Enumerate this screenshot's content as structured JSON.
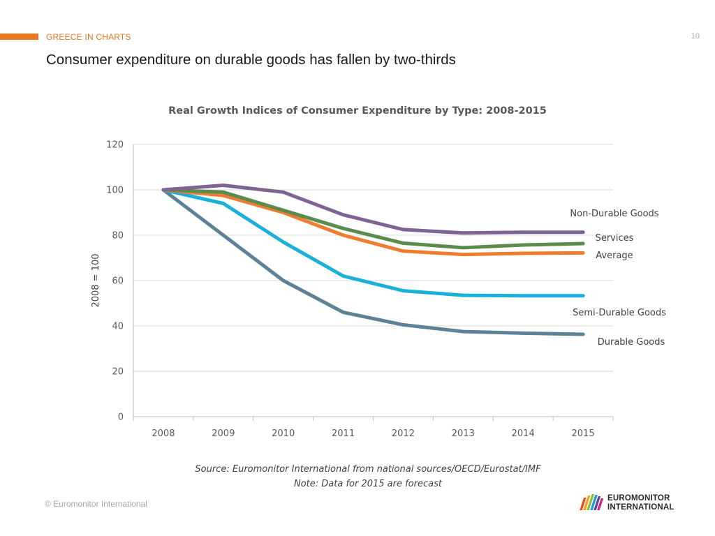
{
  "header": {
    "section_label": "GREECE IN CHARTS",
    "page_number": "10",
    "title": "Consumer expenditure on durable goods has fallen by two-thirds",
    "accent_color": "#e87722"
  },
  "chart_data": {
    "type": "line",
    "title": "Real Growth Indices of Consumer Expenditure by Type: 2008-2015",
    "xlabel": "",
    "ylabel": "2008 = 100",
    "ylim": [
      0,
      120
    ],
    "yticks": [
      0,
      20,
      40,
      60,
      80,
      100,
      120
    ],
    "grid": true,
    "categories": [
      "2008",
      "2009",
      "2010",
      "2011",
      "2012",
      "2013",
      "2014",
      "2015"
    ],
    "series": [
      {
        "name": "Durable Goods",
        "color": "#5b8296",
        "values": [
          100,
          80,
          60,
          46,
          40.5,
          37.5,
          36.8,
          36.3
        ]
      },
      {
        "name": "Semi-Durable Goods",
        "color": "#1ab0d8",
        "values": [
          100,
          94,
          77,
          62,
          55.5,
          53.5,
          53.3,
          53.3
        ]
      },
      {
        "name": "Average",
        "color": "#ee7d31",
        "values": [
          100,
          97.5,
          90,
          80,
          73,
          71.5,
          72,
          72.2
        ]
      },
      {
        "name": "Services",
        "color": "#5a8c4e",
        "values": [
          100,
          99,
          91,
          83,
          76.5,
          74.5,
          75.7,
          76.3
        ]
      },
      {
        "name": "Non-Durable Goods",
        "color": "#7e6393",
        "values": [
          100,
          102,
          99,
          89,
          82.5,
          81,
          81.3,
          81.3
        ]
      }
    ]
  },
  "footer": {
    "source": "Source: Euromonitor International from national sources/OECD/Eurostat/IMF",
    "note": "Note: Data for 2015 are forecast",
    "copyright": "© Euromonitor International",
    "logo_line1": "EUROMONITOR",
    "logo_line2": "INTERNATIONAL"
  }
}
